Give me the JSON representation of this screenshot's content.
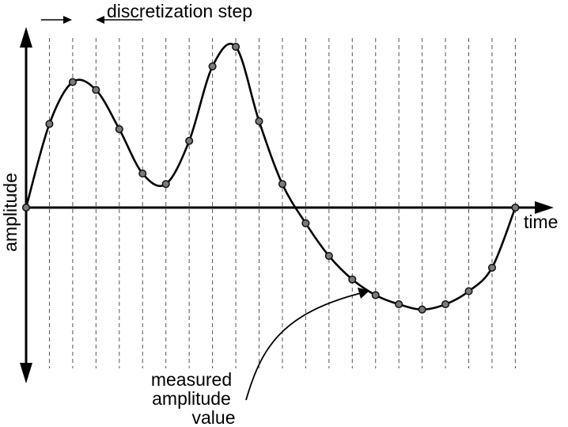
{
  "labels": {
    "step": "discretization step",
    "x_axis": "time",
    "y_axis": "amplitude",
    "measured": [
      "measured",
      "amplitude",
      "value"
    ]
  },
  "samples": [
    {
      "t": 0,
      "a": 0.0
    },
    {
      "t": 1,
      "a": 0.64
    },
    {
      "t": 2,
      "a": 0.96
    },
    {
      "t": 3,
      "a": 0.9
    },
    {
      "t": 4,
      "a": 0.6
    },
    {
      "t": 5,
      "a": 0.26
    },
    {
      "t": 6,
      "a": 0.18
    },
    {
      "t": 7,
      "a": 0.51
    },
    {
      "t": 8,
      "a": 1.08
    },
    {
      "t": 9,
      "a": 1.23
    },
    {
      "t": 10,
      "a": 0.66
    },
    {
      "t": 11,
      "a": 0.18
    },
    {
      "t": 12,
      "a": -0.12
    },
    {
      "t": 13,
      "a": -0.37
    },
    {
      "t": 14,
      "a": -0.55
    },
    {
      "t": 15,
      "a": -0.67
    },
    {
      "t": 16,
      "a": -0.74
    },
    {
      "t": 17,
      "a": -0.78
    },
    {
      "t": 18,
      "a": -0.74
    },
    {
      "t": 19,
      "a": -0.64
    },
    {
      "t": 20,
      "a": -0.46
    },
    {
      "t": 21,
      "a": 0.0
    }
  ],
  "colors": {
    "line": "#000000",
    "dot_fill": "#7a7a7a",
    "dot_stroke": "#111111",
    "grid": "#555555"
  }
}
